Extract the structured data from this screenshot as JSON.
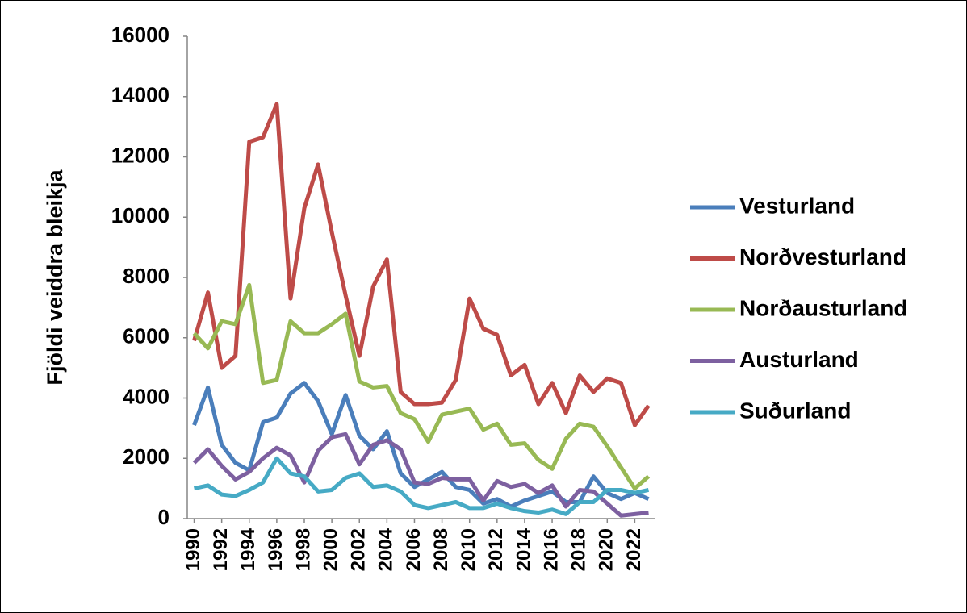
{
  "chart_data": {
    "type": "line",
    "y_label": "Fjöldi veiddra bleikja",
    "x": [
      1990,
      1991,
      1992,
      1993,
      1994,
      1995,
      1996,
      1997,
      1998,
      1999,
      2000,
      2001,
      2002,
      2003,
      2004,
      2005,
      2006,
      2007,
      2008,
      2009,
      2010,
      2011,
      2012,
      2013,
      2014,
      2015,
      2016,
      2017,
      2018,
      2019,
      2020,
      2021,
      2022,
      2023
    ],
    "xlim": [
      1989.5,
      2023.5
    ],
    "xticks": [
      1990,
      1992,
      1994,
      1996,
      1998,
      2000,
      2002,
      2004,
      2006,
      2008,
      2010,
      2012,
      2014,
      2016,
      2018,
      2020,
      2022
    ],
    "ylim": [
      0,
      16000
    ],
    "yticks": [
      0,
      2000,
      4000,
      6000,
      8000,
      10000,
      12000,
      14000,
      16000
    ],
    "grid": false,
    "legend": "right",
    "series": [
      {
        "name": "Vesturland",
        "color": "#4a7ebb",
        "values": [
          3100,
          4350,
          2450,
          1850,
          1600,
          3200,
          3350,
          4150,
          4500,
          3900,
          2800,
          4100,
          2750,
          2300,
          2900,
          1500,
          1050,
          1300,
          1550,
          1050,
          950,
          500,
          650,
          400,
          600,
          750,
          900,
          550,
          550,
          1400,
          850,
          650,
          850,
          650
        ]
      },
      {
        "name": "Norðvesturland",
        "color": "#be4b48",
        "values": [
          5900,
          7500,
          5000,
          5400,
          12500,
          12650,
          13750,
          7300,
          10300,
          11750,
          9500,
          7400,
          5400,
          7700,
          8600,
          4200,
          3800,
          3800,
          3850,
          4600,
          7300,
          6300,
          6100,
          4750,
          5100,
          3800,
          4500,
          3500,
          4750,
          4200,
          4650,
          4500,
          3100,
          3750
        ]
      },
      {
        "name": "Norðausturland",
        "color": "#98b954",
        "values": [
          6150,
          5650,
          6550,
          6450,
          7750,
          4500,
          4600,
          6550,
          6150,
          6150,
          6450,
          6800,
          4550,
          4350,
          4400,
          3500,
          3300,
          2550,
          3450,
          3550,
          3650,
          2950,
          3150,
          2450,
          2500,
          1950,
          1650,
          2650,
          3150,
          3050,
          2400,
          1700,
          1000,
          1400
        ]
      },
      {
        "name": "Austurland",
        "color": "#7d60a0",
        "values": [
          1850,
          2300,
          1750,
          1300,
          1550,
          2000,
          2350,
          2100,
          1200,
          2250,
          2700,
          2800,
          1800,
          2450,
          2600,
          2300,
          1200,
          1150,
          1350,
          1300,
          1300,
          600,
          1250,
          1050,
          1150,
          850,
          1100,
          400,
          950,
          900,
          500,
          100,
          150,
          200
        ]
      },
      {
        "name": "Suðurland",
        "color": "#46aac5",
        "values": [
          1000,
          1100,
          800,
          750,
          950,
          1200,
          2000,
          1500,
          1400,
          900,
          950,
          1350,
          1500,
          1050,
          1100,
          900,
          450,
          350,
          450,
          550,
          350,
          350,
          500,
          350,
          250,
          200,
          300,
          150,
          550,
          550,
          950,
          950,
          850,
          950
        ]
      }
    ]
  }
}
